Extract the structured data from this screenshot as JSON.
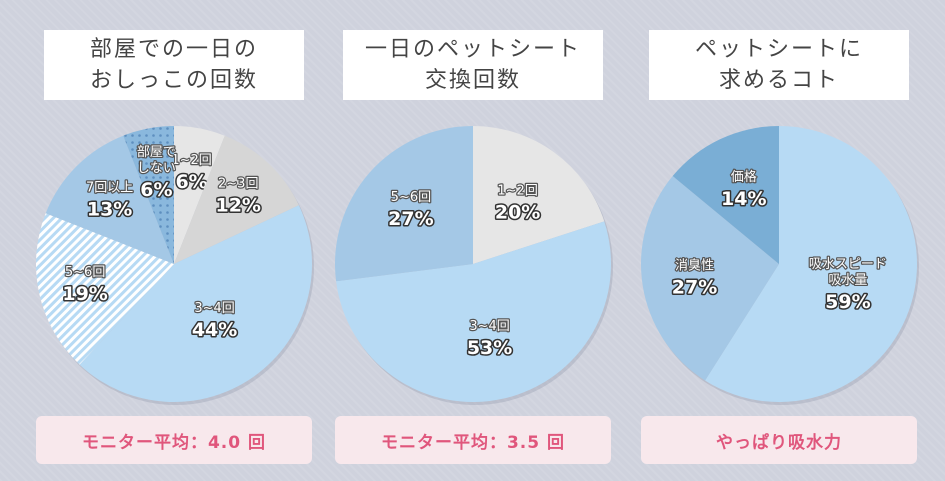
{
  "colors": {
    "background": "#cfd2dd",
    "title_text": "#444444",
    "footer_bg": "#f8e8ec",
    "footer_text": "#e0567c",
    "slice_palette": [
      "#e6e6e6",
      "#d6d6d6",
      "#b7daf4",
      "#a4c8e6",
      "#8ab8dd",
      "#7aaed5"
    ]
  },
  "chart_data": [
    {
      "type": "pie",
      "title_lines": [
        "部屋での一日の",
        "おしっこの回数"
      ],
      "footer": "モニター平均：4.0 回",
      "slices": [
        {
          "label": "1~2回",
          "value": 6,
          "pct_text": "6%",
          "color": "#e6e6e6",
          "pattern": "none"
        },
        {
          "label": "2~3回",
          "value": 12,
          "pct_text": "12%",
          "color": "#d6d6d6",
          "pattern": "none"
        },
        {
          "label": "3~4回",
          "value": 44,
          "pct_text": "44%",
          "color": "#b7daf4",
          "pattern": "none"
        },
        {
          "label": "5~6回",
          "value": 19,
          "pct_text": "19%",
          "color": "#c5dff2",
          "pattern": "stripes"
        },
        {
          "label": "7回以上",
          "value": 13,
          "pct_text": "13%",
          "color": "#a4c8e6",
          "pattern": "none"
        },
        {
          "label": "部屋で\nしない",
          "value": 6,
          "pct_text": "6%",
          "color": "#8ab8dd",
          "pattern": "dots"
        }
      ]
    },
    {
      "type": "pie",
      "title_lines": [
        "一日のペットシート",
        "交換回数"
      ],
      "footer": "モニター平均：3.5 回",
      "slices": [
        {
          "label": "1~2回",
          "value": 20,
          "pct_text": "20%",
          "color": "#e6e6e6",
          "pattern": "none"
        },
        {
          "label": "3~4回",
          "value": 53,
          "pct_text": "53%",
          "color": "#b7daf4",
          "pattern": "none"
        },
        {
          "label": "5~6回",
          "value": 27,
          "pct_text": "27%",
          "color": "#a4c8e6",
          "pattern": "none"
        }
      ]
    },
    {
      "type": "pie",
      "title_lines": [
        "ペットシートに",
        "求めるコト"
      ],
      "footer": "やっぱり吸水力",
      "slices": [
        {
          "label": "吸水スピード\n吸水量",
          "value": 59,
          "pct_text": "59%",
          "color": "#b7daf4",
          "pattern": "none"
        },
        {
          "label": "消臭性",
          "value": 27,
          "pct_text": "27%",
          "color": "#a4c8e6",
          "pattern": "none"
        },
        {
          "label": "価格",
          "value": 14,
          "pct_text": "14%",
          "color": "#7aaed5",
          "pattern": "none"
        }
      ]
    }
  ]
}
